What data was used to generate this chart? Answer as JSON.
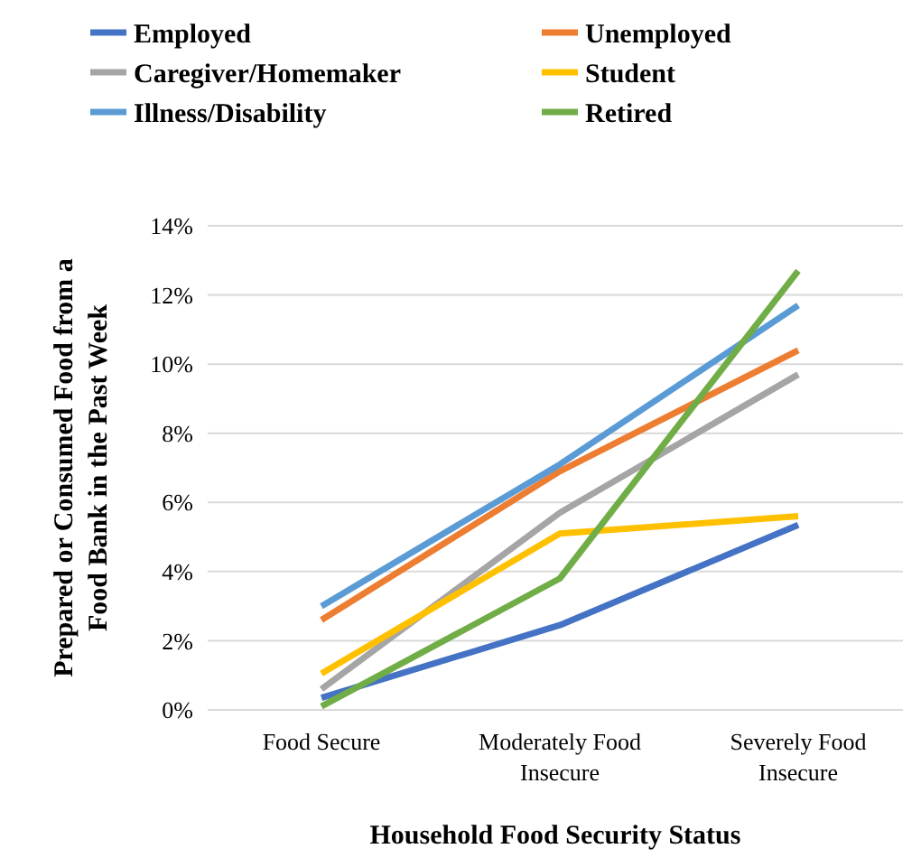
{
  "chart_data": {
    "type": "line",
    "xlabel": "Household Food Security Status",
    "ylabel": "Prepared or Consumed Food from a Food Bank in the Past Week",
    "categories": [
      "Food Secure",
      "Moderately Food Insecure",
      "Severely Food Insecure"
    ],
    "series": [
      {
        "name": "Employed",
        "color": "#4472c4",
        "values": [
          0.35,
          2.45,
          5.35
        ]
      },
      {
        "name": "Unemployed",
        "color": "#ed7d31",
        "values": [
          2.6,
          6.9,
          10.4
        ]
      },
      {
        "name": "Caregiver/Homemaker",
        "color": "#a5a5a5",
        "values": [
          0.6,
          5.7,
          9.7
        ]
      },
      {
        "name": "Student",
        "color": "#ffc000",
        "values": [
          1.05,
          5.1,
          5.6
        ]
      },
      {
        "name": "Illness/Disability",
        "color": "#5b9bd5",
        "values": [
          3.0,
          7.1,
          11.7
        ]
      },
      {
        "name": "Retired",
        "color": "#70ad47",
        "values": [
          0.1,
          3.8,
          12.7
        ]
      }
    ],
    "ylim": [
      0,
      14
    ],
    "yticks": [
      {
        "value": 0,
        "label": "0%"
      },
      {
        "value": 2,
        "label": "2%"
      },
      {
        "value": 4,
        "label": "4%"
      },
      {
        "value": 6,
        "label": "6%"
      },
      {
        "value": 8,
        "label": "8%"
      },
      {
        "value": 10,
        "label": "10%"
      },
      {
        "value": 12,
        "label": "12%"
      },
      {
        "value": 14,
        "label": "14%"
      }
    ],
    "grid": "y",
    "legend": "top",
    "marker": "none",
    "line_style": "solid"
  }
}
